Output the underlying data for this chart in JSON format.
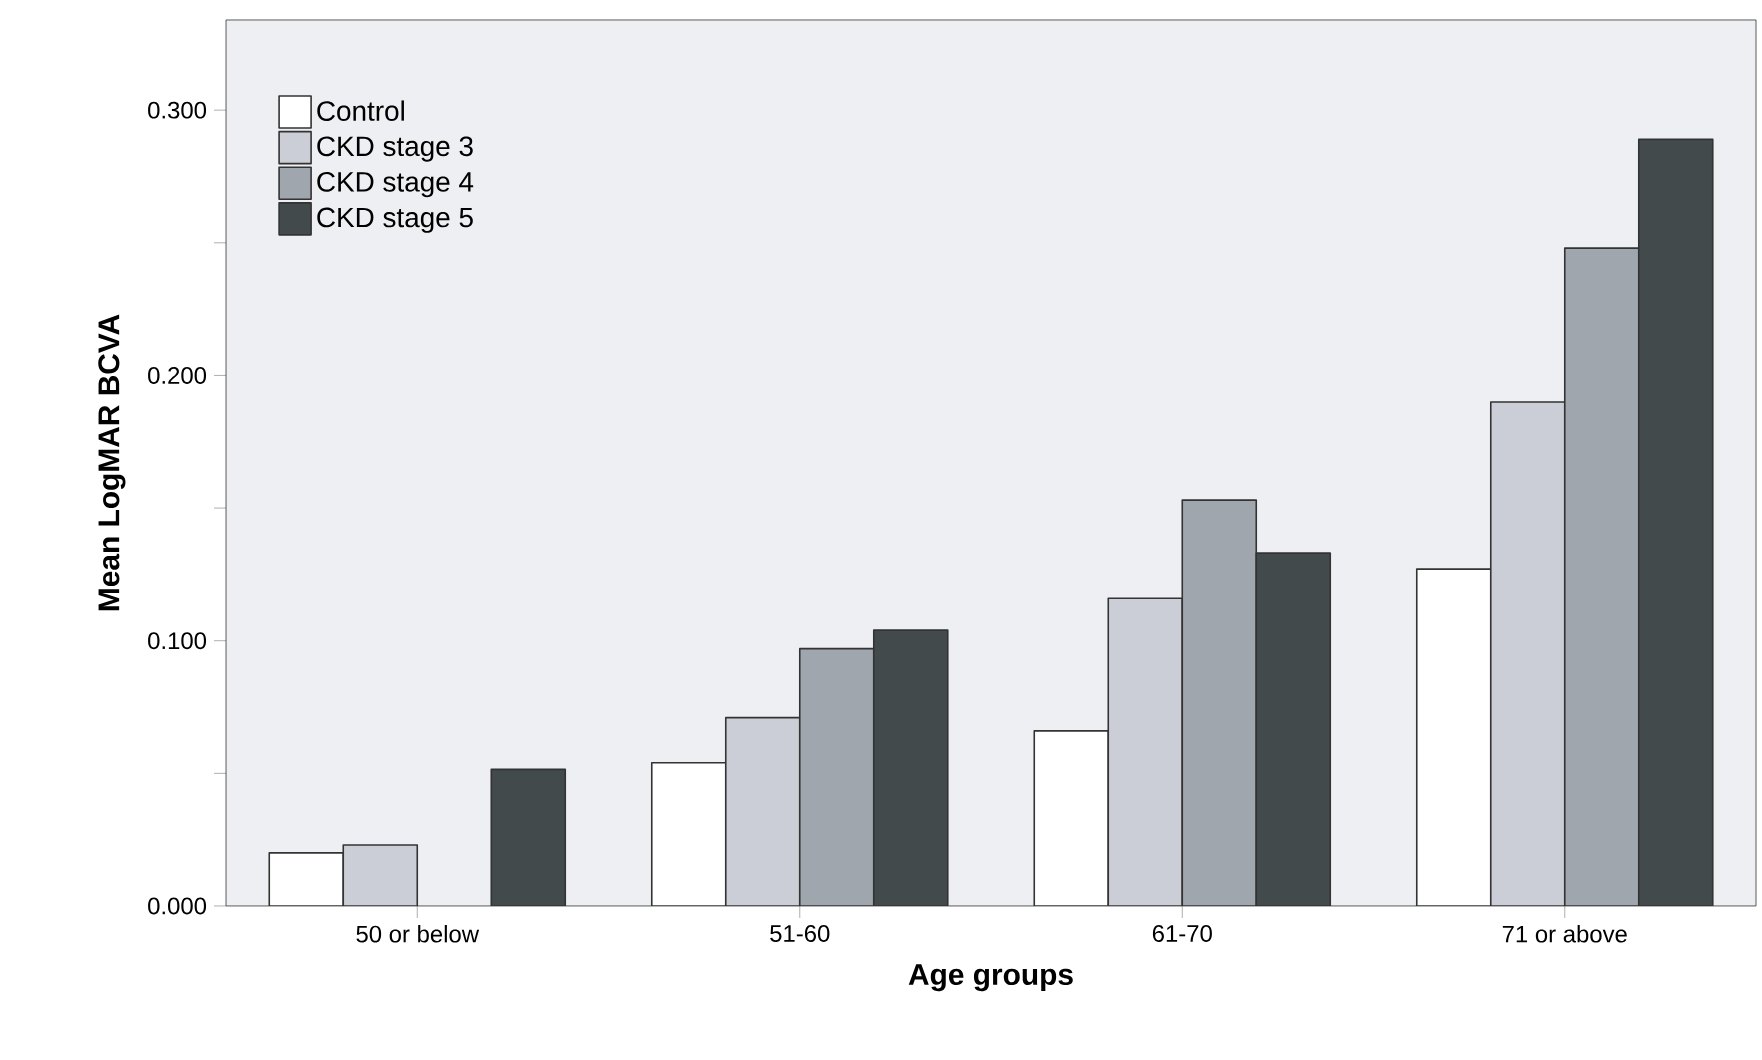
{
  "chart_data": {
    "type": "bar",
    "xlabel": "Age groups",
    "ylabel": "Mean LogMAR BCVA",
    "categories": [
      "50 or below",
      "51-60",
      "61-70",
      "71 or above"
    ],
    "series": [
      {
        "name": "Control",
        "color": "#ffffff",
        "values": [
          0.02,
          0.054,
          0.066,
          0.127
        ]
      },
      {
        "name": "CKD stage 3",
        "color": "#cbced6",
        "values": [
          0.023,
          0.071,
          0.116,
          0.19
        ]
      },
      {
        "name": "CKD stage 4",
        "color": "#a0a6ad",
        "values": [
          null,
          0.097,
          0.153,
          0.248
        ]
      },
      {
        "name": "CKD stage 5",
        "color": "#434a4c",
        "values": [
          0.0515,
          0.104,
          0.133,
          0.289
        ]
      }
    ],
    "ylim": [
      0,
      0.334
    ],
    "yticks": [
      {
        "value": 0,
        "label": "0.000"
      },
      {
        "value": 0.05,
        "label": null
      },
      {
        "value": 0.1,
        "label": "0.100"
      },
      {
        "value": 0.15,
        "label": null
      },
      {
        "value": 0.2,
        "label": "0.200"
      },
      {
        "value": 0.25,
        "label": null
      },
      {
        "value": 0.3,
        "label": "0.300"
      }
    ],
    "legend": "top left",
    "grid": false
  }
}
